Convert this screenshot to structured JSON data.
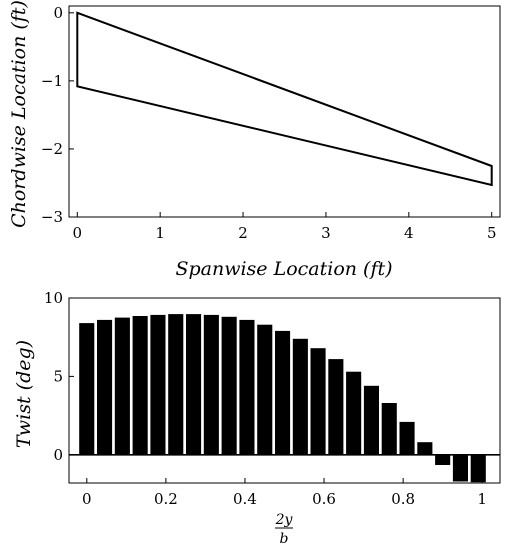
{
  "chart_data": [
    {
      "type": "line",
      "xlabel": "Spanwise Location (ft)",
      "ylabel": "Chordwise Location (ft)",
      "xlim": [
        -0.1,
        5.1
      ],
      "ylim": [
        -3,
        0.1
      ],
      "xticks": [
        "0",
        "1",
        "2",
        "3",
        "4",
        "5"
      ],
      "yticks": [
        "0",
        "−1",
        "−2",
        "−3"
      ],
      "grid": false,
      "series": [
        {
          "x": [
            0,
            5,
            5,
            0,
            0
          ],
          "y": [
            0,
            -2.25,
            -2.53,
            -1.08,
            0
          ]
        }
      ]
    },
    {
      "type": "bar",
      "xlabel_num": "2y",
      "xlabel_den": "b",
      "ylabel": "Twist (deg)",
      "xlim": [
        -0.045,
        1.045
      ],
      "ylim": [
        -1.8,
        10
      ],
      "xticks": [
        "0",
        "0.2",
        "0.4",
        "0.6",
        "0.8",
        "1"
      ],
      "yticks": [
        "0",
        "5",
        "10"
      ],
      "grid": false,
      "x": [
        0,
        0.045,
        0.09,
        0.135,
        0.18,
        0.225,
        0.27,
        0.315,
        0.36,
        0.405,
        0.45,
        0.495,
        0.54,
        0.585,
        0.63,
        0.675,
        0.72,
        0.765,
        0.81,
        0.855,
        0.9,
        0.945,
        0.99
      ],
      "values": [
        8.4,
        8.6,
        8.75,
        8.85,
        8.92,
        8.97,
        8.97,
        8.92,
        8.8,
        8.6,
        8.3,
        7.9,
        7.4,
        6.8,
        6.1,
        5.3,
        4.4,
        3.3,
        2.1,
        0.8,
        -0.65,
        -1.7,
        -1.75
      ]
    }
  ]
}
